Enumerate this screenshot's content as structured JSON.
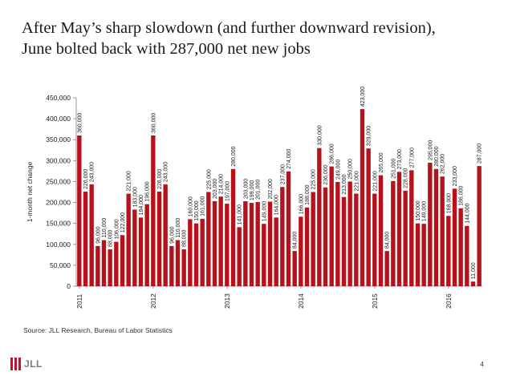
{
  "slide": {
    "title_line1": "After May’s sharp slowdown (and further downward revision),",
    "title_line2": "June bolted back with 287,000 net new jobs",
    "source": "Source: JLL Research, Bureau of Labor Statistics",
    "page_number": "4",
    "logo_text": "JLL"
  },
  "colors": {
    "bar": "#b5121b",
    "axis": "#808080",
    "text": "#1a1a1a",
    "logo": "#c8102e"
  },
  "chart_data": {
    "type": "bar",
    "title": "",
    "xlabel": "",
    "ylabel": "1-month net change",
    "ylim": [
      0,
      450000
    ],
    "yticks": [
      0,
      50000,
      100000,
      150000,
      200000,
      250000,
      300000,
      350000,
      400000,
      450000
    ],
    "ytick_labels": [
      "0",
      "50,000",
      "100,000",
      "150,000",
      "200,000",
      "250,000",
      "300,000",
      "350,000",
      "400,000",
      "450,000"
    ],
    "grid": false,
    "legend": "none",
    "year_labels": [
      {
        "label": "2011",
        "index": 0
      },
      {
        "label": "2012",
        "index": 12
      },
      {
        "label": "2013",
        "index": 24
      },
      {
        "label": "2014",
        "index": 36
      },
      {
        "label": "2015",
        "index": 48
      },
      {
        "label": "2016",
        "index": 60
      }
    ],
    "values": [
      360000,
      226000,
      243000,
      96000,
      110000,
      88000,
      106000,
      122000,
      221000,
      183000,
      164000,
      196000,
      360000,
      226000,
      243000,
      96000,
      110000,
      88000,
      160000,
      150000,
      161000,
      225000,
      203000,
      214000,
      197000,
      280000,
      141000,
      203000,
      199000,
      201000,
      149000,
      202000,
      164000,
      237000,
      274000,
      84000,
      166000,
      188000,
      225000,
      330000,
      236000,
      286000,
      249000,
      213000,
      250000,
      221000,
      423000,
      329000,
      221000,
      265000,
      84000,
      251000,
      273000,
      228000,
      277000,
      150000,
      149000,
      295000,
      280000,
      262000,
      168000,
      233000,
      186000,
      144000,
      11000,
      287000
    ],
    "value_labels": [
      "360,000",
      "226,000",
      "243,000",
      "96,000",
      "110,000",
      "88,000",
      "106,000",
      "122,000",
      "221,000",
      "183,000",
      "164,000",
      "196,000",
      "360,000",
      "226,000",
      "243,000",
      "96,000",
      "110,000",
      "88,000",
      "160,000",
      "150,000",
      "161,000",
      "225,000",
      "203,000",
      "214,000",
      "197,000",
      "280,000",
      "141,000",
      "203,000",
      "199,000",
      "201,000",
      "149,000",
      "202,000",
      "164,000",
      "237,000",
      "274,000",
      "84,000",
      "166,000",
      "188,000",
      "225,000",
      "330,000",
      "236,000",
      "286,000",
      "249,000",
      "213,000",
      "250,000",
      "221,000",
      "423,000",
      "329,000",
      "221,000",
      "265,000",
      "84,000",
      "251,000",
      "273,000",
      "228,000",
      "277,000",
      "150,000",
      "149,000",
      "295,000",
      "280,000",
      "262,000",
      "168,000",
      "233,000",
      "186,000",
      "144,000",
      "11,000",
      "287,000"
    ]
  }
}
